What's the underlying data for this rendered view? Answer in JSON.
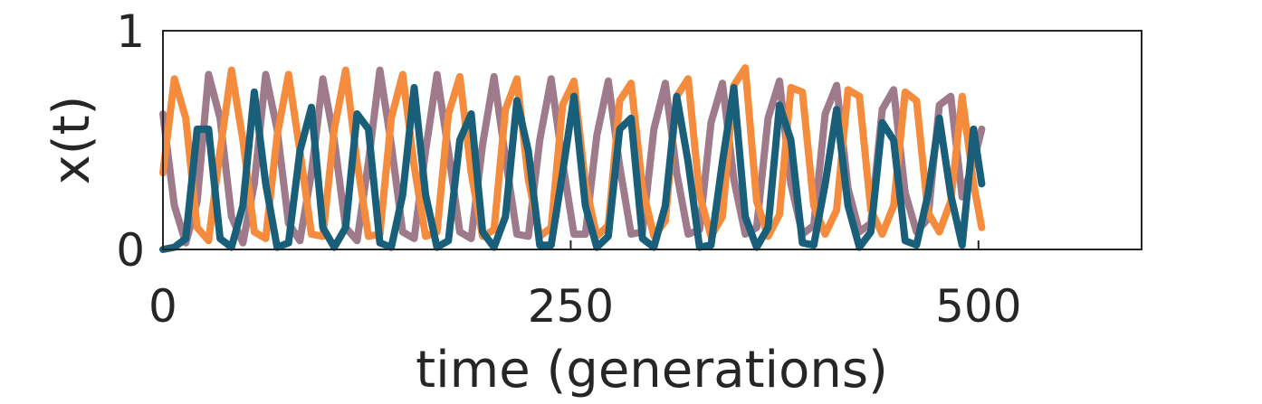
{
  "chart_data": {
    "type": "line",
    "xlabel": "time (generations)",
    "ylabel": "x(t)",
    "xlim": [
      0,
      600
    ],
    "ylim": [
      0,
      1
    ],
    "xticks": [
      0,
      250,
      500
    ],
    "xtick_labels": [
      "0",
      "250",
      "500"
    ],
    "yticks": [
      0,
      1
    ],
    "ytick_labels": [
      "0",
      "1"
    ],
    "grid": false,
    "legend": "none",
    "series": [
      {
        "color": "#9e7a8a",
        "x": [
          0,
          7,
          14,
          21,
          28,
          35,
          42,
          49,
          56,
          63,
          70,
          77,
          84,
          91,
          98,
          105,
          112,
          119,
          126,
          133,
          140,
          147,
          154,
          161,
          168,
          175,
          182,
          189,
          196,
          203,
          210,
          217,
          224,
          231,
          238,
          245,
          252,
          259,
          266,
          273,
          280,
          287,
          294,
          301,
          308,
          315,
          322,
          329,
          336,
          343,
          350,
          357,
          364,
          371,
          378,
          385,
          392,
          399,
          406,
          413,
          420,
          427,
          434,
          441,
          448,
          455,
          462,
          469,
          476,
          483,
          490,
          497,
          502
        ],
        "y": [
          0.62,
          0.2,
          0.03,
          0.22,
          0.8,
          0.6,
          0.15,
          0.03,
          0.3,
          0.8,
          0.55,
          0.12,
          0.04,
          0.35,
          0.78,
          0.5,
          0.1,
          0.04,
          0.4,
          0.82,
          0.48,
          0.08,
          0.05,
          0.45,
          0.8,
          0.45,
          0.08,
          0.05,
          0.48,
          0.79,
          0.42,
          0.07,
          0.06,
          0.5,
          0.78,
          0.4,
          0.07,
          0.07,
          0.52,
          0.77,
          0.38,
          0.07,
          0.08,
          0.55,
          0.76,
          0.35,
          0.07,
          0.09,
          0.58,
          0.76,
          0.32,
          0.07,
          0.1,
          0.6,
          0.77,
          0.3,
          0.07,
          0.11,
          0.62,
          0.75,
          0.28,
          0.08,
          0.12,
          0.64,
          0.73,
          0.26,
          0.08,
          0.14,
          0.66,
          0.7,
          0.24,
          0.4,
          0.55
        ]
      },
      {
        "color": "#f58b3c",
        "x": [
          0,
          7,
          14,
          21,
          28,
          35,
          42,
          49,
          56,
          63,
          70,
          77,
          84,
          91,
          98,
          105,
          112,
          119,
          126,
          133,
          140,
          147,
          154,
          161,
          168,
          175,
          182,
          189,
          196,
          203,
          210,
          217,
          224,
          231,
          238,
          245,
          252,
          259,
          266,
          273,
          280,
          287,
          294,
          301,
          308,
          315,
          322,
          329,
          336,
          343,
          350,
          357,
          364,
          371,
          378,
          385,
          392,
          399,
          406,
          413,
          420,
          427,
          434,
          441,
          448,
          455,
          462,
          469,
          476,
          483,
          490,
          497,
          502
        ],
        "y": [
          0.35,
          0.78,
          0.6,
          0.1,
          0.04,
          0.45,
          0.82,
          0.5,
          0.08,
          0.05,
          0.52,
          0.8,
          0.45,
          0.07,
          0.06,
          0.55,
          0.82,
          0.4,
          0.06,
          0.07,
          0.6,
          0.8,
          0.38,
          0.06,
          0.08,
          0.62,
          0.79,
          0.35,
          0.06,
          0.09,
          0.64,
          0.78,
          0.32,
          0.06,
          0.1,
          0.66,
          0.77,
          0.3,
          0.06,
          0.11,
          0.68,
          0.76,
          0.28,
          0.06,
          0.13,
          0.7,
          0.78,
          0.25,
          0.06,
          0.15,
          0.75,
          0.83,
          0.22,
          0.06,
          0.16,
          0.74,
          0.72,
          0.2,
          0.07,
          0.18,
          0.73,
          0.7,
          0.18,
          0.07,
          0.2,
          0.72,
          0.68,
          0.17,
          0.08,
          0.22,
          0.7,
          0.3,
          0.1
        ]
      },
      {
        "color": "#1a5f7a",
        "x": [
          0,
          7,
          14,
          21,
          28,
          35,
          42,
          49,
          56,
          63,
          70,
          77,
          84,
          91,
          98,
          105,
          112,
          119,
          126,
          133,
          140,
          147,
          154,
          161,
          168,
          175,
          182,
          189,
          196,
          203,
          210,
          217,
          224,
          231,
          238,
          245,
          252,
          259,
          266,
          273,
          280,
          287,
          294,
          301,
          308,
          315,
          322,
          329,
          336,
          343,
          350,
          357,
          364,
          371,
          378,
          385,
          392,
          399,
          406,
          413,
          420,
          427,
          434,
          441,
          448,
          455,
          462,
          469,
          476,
          483,
          490,
          497,
          502
        ],
        "y": [
          0.0,
          0.01,
          0.05,
          0.55,
          0.55,
          0.05,
          0.01,
          0.2,
          0.72,
          0.3,
          0.01,
          0.03,
          0.45,
          0.65,
          0.1,
          0.01,
          0.1,
          0.62,
          0.55,
          0.03,
          0.01,
          0.25,
          0.74,
          0.25,
          0.01,
          0.04,
          0.5,
          0.62,
          0.08,
          0.01,
          0.15,
          0.68,
          0.45,
          0.02,
          0.02,
          0.35,
          0.7,
          0.2,
          0.01,
          0.06,
          0.55,
          0.6,
          0.05,
          0.01,
          0.2,
          0.7,
          0.4,
          0.01,
          0.02,
          0.4,
          0.74,
          0.15,
          0.01,
          0.1,
          0.66,
          0.5,
          0.03,
          0.02,
          0.3,
          0.64,
          0.2,
          0.01,
          0.08,
          0.58,
          0.5,
          0.04,
          0.02,
          0.25,
          0.6,
          0.25,
          0.02,
          0.55,
          0.3
        ]
      }
    ]
  }
}
